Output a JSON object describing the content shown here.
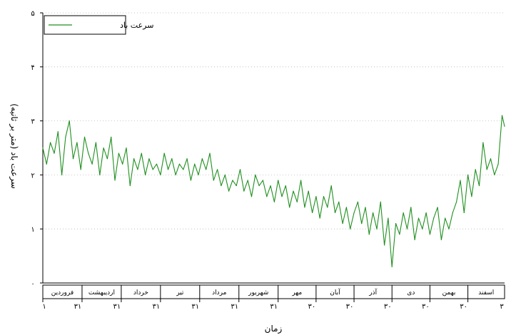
{
  "chart_data": {
    "type": "line",
    "xlabel": "زمان",
    "ylabel": "سرعت باد (متر بر ثانیه)",
    "ylim": [
      0,
      5
    ],
    "yticks": [
      {
        "value": 0,
        "label": "۰"
      },
      {
        "value": 1,
        "label": "۱"
      },
      {
        "value": 2,
        "label": "۲"
      },
      {
        "value": 3,
        "label": "۳"
      },
      {
        "value": 4,
        "label": "۴"
      },
      {
        "value": 5,
        "label": "۵"
      }
    ],
    "grid": "horizontal-dotted",
    "legend": {
      "placement": "top-left",
      "entries": [
        "سرعت باد"
      ]
    },
    "months": [
      "فروردین",
      "اردیبهشت",
      "خرداد",
      "تیر",
      "مرداد",
      "شهریور",
      "مهر",
      "آبان",
      "آذر",
      "دی",
      "بهمن",
      "اسفند"
    ],
    "month_end_labels": [
      "۳۱",
      "۳۱",
      "۳۱",
      "۳۱",
      "۳۱",
      "۳۱",
      "۳۰",
      "۳۰",
      "۳۰",
      "۳۰",
      "۳۰"
    ],
    "first_day_label": "۱",
    "last_day_label": "۳",
    "series": [
      {
        "name": "سرعت باد",
        "color": "#1f8f1f",
        "x_unit": "day of year",
        "x": [
          1,
          4,
          7,
          10,
          13,
          16,
          19,
          22,
          25,
          28,
          31,
          34,
          37,
          40,
          43,
          46,
          49,
          52,
          55,
          58,
          61,
          64,
          67,
          70,
          73,
          76,
          79,
          82,
          85,
          88,
          91,
          94,
          97,
          100,
          103,
          106,
          109,
          112,
          115,
          118,
          121,
          124,
          127,
          130,
          133,
          136,
          139,
          142,
          145,
          148,
          151,
          154,
          157,
          160,
          163,
          166,
          169,
          172,
          175,
          178,
          181,
          184,
          187,
          190,
          193,
          196,
          199,
          202,
          205,
          208,
          211,
          214,
          217,
          220,
          223,
          226,
          229,
          232,
          235,
          238,
          241,
          244,
          247,
          250,
          253,
          256,
          259,
          262,
          265,
          268,
          271,
          274,
          277,
          280,
          283,
          286,
          289,
          292,
          295,
          298,
          301,
          304,
          307,
          310,
          313,
          316,
          319,
          322,
          325,
          328,
          331,
          334,
          337,
          340,
          343,
          346,
          349,
          352,
          355,
          358,
          361,
          364,
          366
        ],
        "values": [
          2.5,
          2.2,
          2.6,
          2.4,
          2.8,
          2.0,
          2.7,
          3.0,
          2.3,
          2.6,
          2.1,
          2.7,
          2.4,
          2.2,
          2.6,
          2.0,
          2.5,
          2.3,
          2.7,
          1.9,
          2.4,
          2.2,
          2.5,
          1.8,
          2.3,
          2.1,
          2.4,
          2.0,
          2.3,
          2.1,
          2.2,
          2.0,
          2.4,
          2.1,
          2.3,
          2.0,
          2.2,
          2.1,
          2.3,
          1.9,
          2.2,
          2.0,
          2.3,
          2.1,
          2.4,
          1.9,
          2.1,
          1.8,
          2.0,
          1.7,
          1.9,
          1.8,
          2.1,
          1.7,
          1.9,
          1.6,
          2.0,
          1.8,
          1.9,
          1.6,
          1.8,
          1.5,
          1.9,
          1.6,
          1.8,
          1.4,
          1.7,
          1.5,
          1.9,
          1.4,
          1.7,
          1.3,
          1.6,
          1.2,
          1.6,
          1.4,
          1.8,
          1.3,
          1.5,
          1.1,
          1.4,
          1.0,
          1.3,
          1.5,
          1.1,
          1.4,
          0.9,
          1.3,
          1.0,
          1.5,
          0.7,
          1.2,
          0.3,
          1.1,
          0.9,
          1.3,
          1.0,
          1.4,
          0.8,
          1.2,
          1.0,
          1.3,
          0.9,
          1.2,
          1.4,
          0.8,
          1.2,
          1.0,
          1.3,
          1.5,
          1.9,
          1.3,
          2.0,
          1.6,
          2.1,
          1.8,
          2.6,
          2.1,
          2.3,
          2.0,
          2.2,
          3.1,
          2.9
        ]
      }
    ]
  }
}
